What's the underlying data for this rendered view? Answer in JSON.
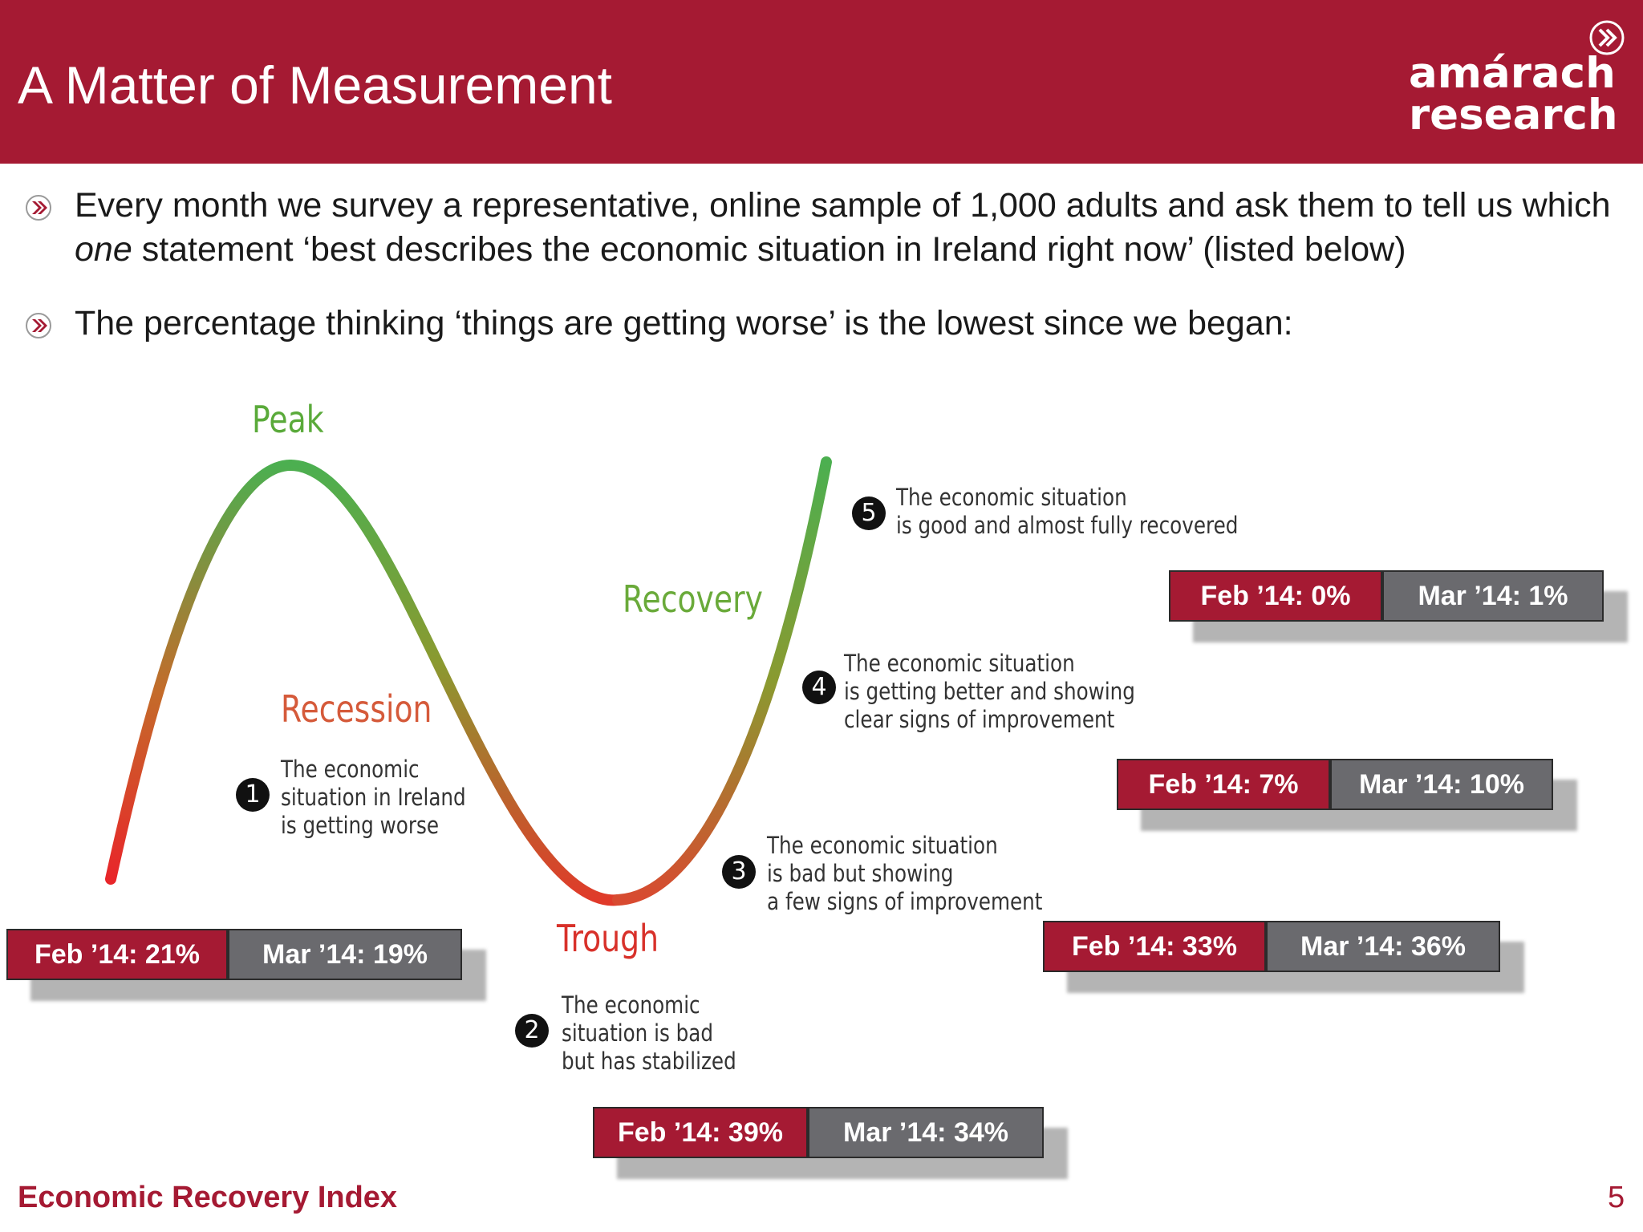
{
  "header": {
    "title": "A Matter of Measurement",
    "logo_line1": "amárach",
    "logo_line2": "research",
    "bg_color": "#a51a33"
  },
  "bullets": [
    {
      "part1": "Every month we survey a representative, online sample of 1,000 adults and ask them to tell us which ",
      "emphasis": "one",
      "part2": " statement ‘best describes the economic situation in Ireland right now’ (listed below)"
    },
    {
      "text": "The percentage thinking ‘things are getting worse’ is the lowest since we began:"
    }
  ],
  "diagram": {
    "phases": {
      "peak": "Peak",
      "recession": "Recession",
      "trough": "Trough",
      "recovery": "Recovery"
    },
    "statements": [
      {
        "num": "1",
        "lines": [
          "The economic",
          "situation in Ireland",
          "is getting worse"
        ],
        "feb": "Feb ’14: 21%",
        "mar": "Mar ’14: 19%"
      },
      {
        "num": "2",
        "lines": [
          "The economic",
          "situation is bad",
          "but has stabilized"
        ],
        "feb": "Feb ’14: 39%",
        "mar": "Mar ’14: 34%"
      },
      {
        "num": "3",
        "lines": [
          "The economic situation",
          "is bad but showing",
          "a few signs of improvement"
        ],
        "feb": "Feb ’14: 33%",
        "mar": "Mar ’14: 36%"
      },
      {
        "num": "4",
        "lines": [
          "The economic situation",
          "is getting better and showing",
          "clear signs of improvement"
        ],
        "feb": "Feb ’14: 7%",
        "mar": "Mar ’14: 10%"
      },
      {
        "num": "5",
        "lines": [
          "The economic situation",
          "is good and almost fully recovered"
        ],
        "feb": "Feb ’14: 0%",
        "mar": "Mar ’14: 1%"
      }
    ],
    "colors": {
      "good": "#4caf50",
      "mid": "#8a9a30",
      "bad": "#e8262a",
      "trough": "#d84a30"
    }
  },
  "footer": {
    "label": "Economic Recovery Index",
    "page": "5"
  }
}
